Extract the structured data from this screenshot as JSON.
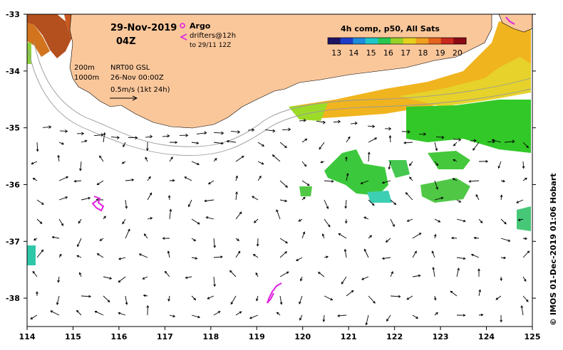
{
  "header": {
    "date": "29-Nov-2019",
    "hour": "04Z"
  },
  "legend": {
    "argo_label": "Argo",
    "drifters_label": "drifters@12h",
    "drifters_to": "to 29/11 12Z",
    "isobath_200": "200m",
    "isobath_1000": "1000m",
    "gsl_label": "NRT00 GSL",
    "gsl_date": "26-Nov 00:00Z",
    "vector_scale": "0.5m/s (1kt 24h)"
  },
  "colorbar": {
    "title": "4h comp, p50, All Sats",
    "ticks": [
      "13",
      "14",
      "15",
      "16",
      "17",
      "18",
      "19",
      "20"
    ],
    "min": 12.5,
    "max": 20.5
  },
  "axes": {
    "x_ticks": [
      "114",
      "115",
      "116",
      "117",
      "118",
      "119",
      "120",
      "121",
      "122",
      "123",
      "124",
      "125"
    ],
    "y_ticks": [
      "-33",
      "-34",
      "-35",
      "-36",
      "-37",
      "-38"
    ],
    "lon_range": [
      114,
      125
    ],
    "lat_range": [
      -38.5,
      -33
    ]
  },
  "credit": "© IMOS 01-Dec-2019 01:06 Hobart",
  "colors": {
    "land": "#fac79b",
    "argo": "#e020e0",
    "drifter": "#e020e0",
    "isobath": "#999999",
    "arrow": "#000000"
  }
}
